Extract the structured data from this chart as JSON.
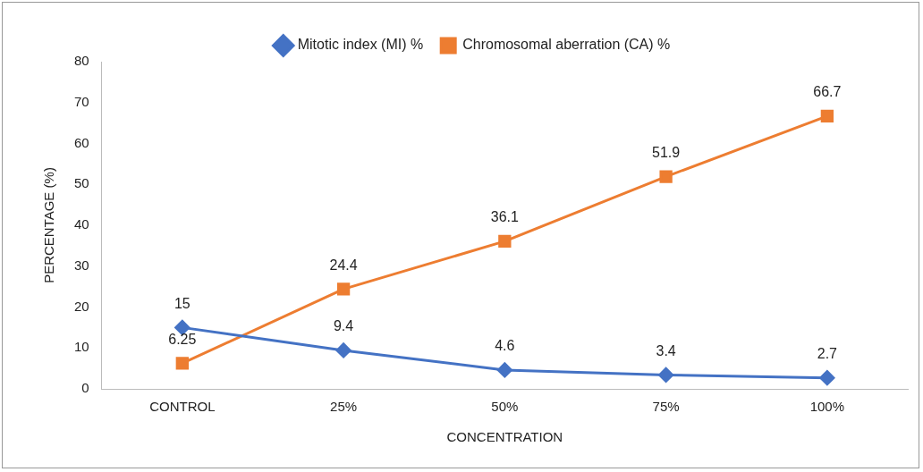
{
  "chart_data": {
    "type": "line",
    "xlabel": "CONCENTRATION",
    "ylabel": "PERCENTAGE (%)",
    "categories": [
      "CONTROL",
      "25%",
      "50%",
      "75%",
      "100%"
    ],
    "series": [
      {
        "name": "Mitotic index (MI) %",
        "color": "#4472c4",
        "values": [
          15,
          9.4,
          4.6,
          3.4,
          2.7
        ],
        "marker": "diamond"
      },
      {
        "name": "Chromosomal aberration (CA) %",
        "color": "#ed7d31",
        "values": [
          6.25,
          24.4,
          36.1,
          51.9,
          66.7
        ],
        "marker": "square"
      }
    ],
    "ylim": [
      0,
      80
    ],
    "yticks": [
      0,
      10,
      20,
      30,
      40,
      50,
      60,
      70,
      80
    ],
    "grid": false,
    "legend": "top",
    "data_labels": true
  }
}
